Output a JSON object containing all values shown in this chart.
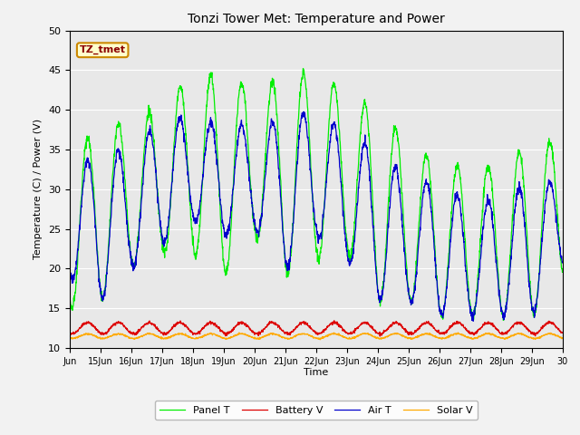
{
  "title": "Tonzi Tower Met: Temperature and Power",
  "xlabel": "Time",
  "ylabel": "Temperature (C) / Power (V)",
  "ylim": [
    10,
    50
  ],
  "xlim_days": [
    14,
    30
  ],
  "annotation": "TZ_tmet",
  "xtick_labels": [
    "Jun",
    "15Jun",
    "16Jun",
    "17Jun",
    "18Jun",
    "19Jun",
    "20Jun",
    "21Jun",
    "22Jun",
    "23Jun",
    "24Jun",
    "25Jun",
    "26Jun",
    "27Jun",
    "28Jun",
    "29Jun",
    "30"
  ],
  "xtick_positions": [
    14,
    15,
    16,
    17,
    18,
    19,
    20,
    21,
    22,
    23,
    24,
    25,
    26,
    27,
    28,
    29,
    30
  ],
  "bg_color": "#e8e8e8",
  "fig_color": "#f2f2f2",
  "panel_color": "#00ee00",
  "battery_color": "#dd0000",
  "air_color": "#0000cc",
  "solar_color": "#ffaa00",
  "legend_labels": [
    "Panel T",
    "Battery V",
    "Air T",
    "Solar V"
  ],
  "n_points": 1920
}
